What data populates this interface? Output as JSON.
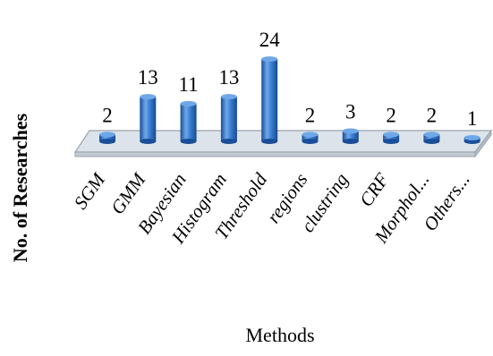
{
  "chart_data": {
    "type": "bar",
    "title": "",
    "xlabel": "Methods",
    "ylabel": "No. of Researches",
    "categories": [
      "SGM",
      "GMM",
      "Bayesian",
      "Histogram",
      "Threshold",
      "regions",
      "clustring",
      "CRF",
      "Morphol...",
      "Others..."
    ],
    "values": [
      2,
      13,
      11,
      13,
      24,
      2,
      3,
      2,
      2,
      1
    ],
    "ylim": [
      0,
      24
    ],
    "grid": false,
    "legend": "none",
    "style": "3d-cylinder",
    "colors": {
      "bar": "#2e6fc6",
      "bar_light": "#6fa8e8",
      "bar_dark": "#1a4e98",
      "floor": "#dde3ea",
      "floor_edge": "#9aa3ad"
    }
  }
}
